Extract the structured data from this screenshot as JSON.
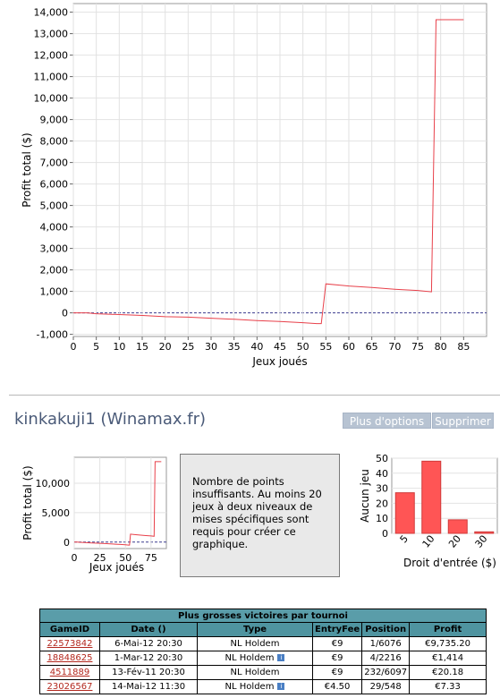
{
  "main_chart": {
    "ylabel": "Profit total ($)",
    "xlabel": "Jeux joués",
    "xticks": [
      "0",
      "5",
      "10",
      "15",
      "20",
      "25",
      "30",
      "35",
      "40",
      "45",
      "50",
      "55",
      "60",
      "65",
      "70",
      "75",
      "80",
      "85"
    ],
    "yticks": [
      "-1,000",
      "0",
      "1,000",
      "2,000",
      "3,000",
      "4,000",
      "5,000",
      "6,000",
      "7,000",
      "8,000",
      "9,000",
      "10,000",
      "11,000",
      "12,000",
      "13,000",
      "14,000"
    ],
    "line_color": "#e8404a"
  },
  "player": {
    "name": "kinkakuji1 (Winamax.fr)",
    "options_label": "Plus d'options",
    "delete_label": "Supprimer"
  },
  "mini_chart": {
    "ylabel": "Profit total ($)",
    "xlabel": "Jeux joués",
    "xticks": [
      "0",
      "25",
      "50",
      "75"
    ],
    "yticks": [
      "0",
      "5,000",
      "10,000"
    ]
  },
  "message": "Nombre de points insuffisants. Au moins 20 jeux à deux niveaux de mises spécifiques sont requis pour créer ce graphique.",
  "bar_chart": {
    "ylabel": "Aucun jeu",
    "xlabel": "Droit d'entrée ($)",
    "yticks": [
      "0",
      "10",
      "20",
      "30",
      "40",
      "50"
    ],
    "bar_color": "#ff5555"
  },
  "table": {
    "caption": "Plus grosses victoires par tournoi",
    "headers": [
      "GameID",
      "Date ()",
      "Type",
      "EntryFee",
      "Position",
      "Profit"
    ],
    "rows": [
      {
        "id": "22573842",
        "date": "6-Mai-12  20:30",
        "type": "NL Holdem",
        "info": false,
        "fee": "€9",
        "pos": "1/6076",
        "profit": "€9,735.20"
      },
      {
        "id": "18848625",
        "date": "1-Mar-12  20:30",
        "type": "NL Holdem",
        "info": true,
        "fee": "€9",
        "pos": "4/2216",
        "profit": "€1,414"
      },
      {
        "id": "4511889",
        "date": "13-Fév-11  20:30",
        "type": "NL Holdem",
        "info": false,
        "fee": "€9",
        "pos": "232/6097",
        "profit": "€20.18"
      },
      {
        "id": "23026567",
        "date": "14-Mai-12  11:30",
        "type": "NL Holdem",
        "info": true,
        "fee": "€4.50",
        "pos": "29/548",
        "profit": "€7.33"
      }
    ]
  },
  "chart_data": [
    {
      "type": "line",
      "title": "",
      "xlabel": "Jeux joués",
      "ylabel": "Profit total ($)",
      "xlim": [
        0,
        90
      ],
      "ylim": [
        -1100,
        14400
      ],
      "grid": true,
      "series": [
        {
          "x": [
            0,
            3,
            5,
            10,
            15,
            20,
            25,
            30,
            35,
            40,
            45,
            50,
            53,
            54,
            55,
            60,
            65,
            70,
            75,
            78,
            79,
            85
          ],
          "y": [
            0,
            0,
            -40,
            -80,
            -120,
            -180,
            -200,
            -250,
            -300,
            -360,
            -400,
            -460,
            -500,
            -500,
            1350,
            1250,
            1180,
            1100,
            1040,
            980,
            13650,
            13650
          ]
        }
      ]
    },
    {
      "type": "line",
      "xlabel": "Jeux joués",
      "ylabel": "Profit total ($)",
      "xlim": [
        0,
        90
      ],
      "ylim": [
        -1100,
        14400
      ],
      "grid": true,
      "series": [
        {
          "x": [
            0,
            3,
            5,
            10,
            15,
            20,
            25,
            30,
            35,
            40,
            45,
            50,
            53,
            54,
            55,
            60,
            65,
            70,
            75,
            78,
            79,
            85
          ],
          "y": [
            0,
            0,
            -40,
            -80,
            -120,
            -180,
            -200,
            -250,
            -300,
            -360,
            -400,
            -460,
            -500,
            -500,
            1350,
            1250,
            1180,
            1100,
            1040,
            980,
            13650,
            13650
          ]
        }
      ]
    },
    {
      "type": "bar",
      "xlabel": "Droit d'entrée ($)",
      "ylabel": "Aucun jeu",
      "categories": [
        "5",
        "10",
        "20",
        "30"
      ],
      "values": [
        27,
        48,
        9,
        1
      ],
      "ylim": [
        0,
        50
      ],
      "grid": true
    }
  ]
}
